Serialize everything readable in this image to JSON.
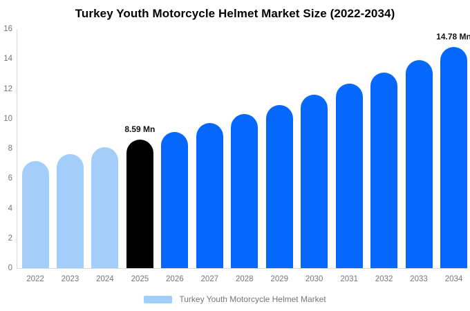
{
  "title": "Turkey Youth Motorcycle Helmet Market Size (2022-2034)",
  "legend": {
    "label": "Turkey Youth Motorcycle Helmet Market",
    "swatch_color": "#a3cefa"
  },
  "colors": {
    "light_blue": "#a3cefa",
    "primary_blue": "#0567fb",
    "highlight_black": "#000000",
    "axis_line": "#d9d9d9",
    "tick_text": "#757575",
    "annotation_text": "#111111"
  },
  "chart_data": {
    "type": "bar",
    "title": "Turkey Youth Motorcycle Helmet Market Size (2022-2034)",
    "xlabel": "",
    "ylabel": "",
    "categories": [
      "2022",
      "2023",
      "2024",
      "2025",
      "2026",
      "2027",
      "2028",
      "2029",
      "2030",
      "2031",
      "2032",
      "2033",
      "2034"
    ],
    "values": [
      7.17,
      7.62,
      8.09,
      8.59,
      9.12,
      9.69,
      10.29,
      10.93,
      11.61,
      12.33,
      13.1,
      13.91,
      14.78
    ],
    "unit": "Mn",
    "bar_color_keys": [
      "light_blue",
      "light_blue",
      "light_blue",
      "highlight_black",
      "primary_blue",
      "primary_blue",
      "primary_blue",
      "primary_blue",
      "primary_blue",
      "primary_blue",
      "primary_blue",
      "primary_blue",
      "primary_blue"
    ],
    "annotations": [
      {
        "index": 3,
        "text": "8.59 Mn"
      },
      {
        "index": 12,
        "text": "14.78 Mn"
      }
    ],
    "yticks": [
      0,
      2,
      4,
      6,
      8,
      10,
      12,
      14,
      16
    ],
    "ylim": [
      0,
      16
    ],
    "grid": false,
    "legend_position": "bottom"
  }
}
